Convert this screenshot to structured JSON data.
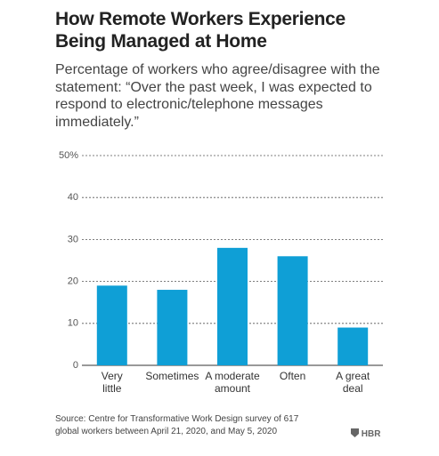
{
  "chart_data": {
    "type": "bar",
    "title": "How Remote Workers Experience Being Managed at Home",
    "subtitle": "Percentage of workers who agree/disagree with the statement: “Over the past week, I was expected to respond to electronic/telephone messages immediately.”",
    "categories": [
      "Very\nlittle",
      "Sometimes",
      "A moderate\namount",
      "Often",
      "A great\ndeal"
    ],
    "values": [
      19,
      18,
      28,
      26,
      9
    ],
    "color": "#0f9fd6",
    "ylim": [
      0,
      50
    ],
    "yticks": [
      0,
      10,
      20,
      30,
      40,
      {
        "value": 50,
        "label": "50%"
      }
    ],
    "grid": true,
    "source": "Source: Centre for Transformative Work Design survey of 617 global workers between April 21, 2020, and May 5, 2020",
    "brand": "HBR"
  }
}
